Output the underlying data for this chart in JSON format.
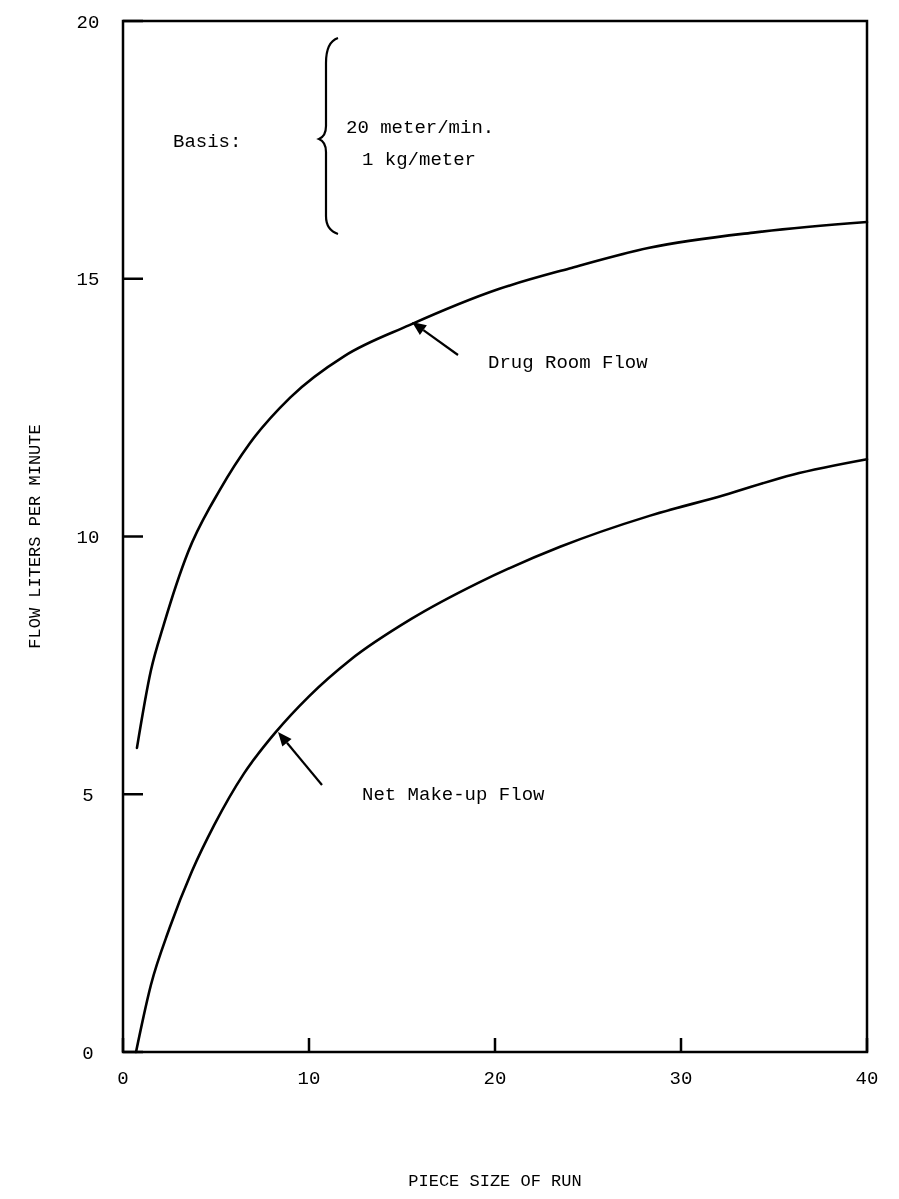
{
  "chart_data": {
    "type": "line",
    "xlabel": "PIECE SIZE OF RUN",
    "ylabel": "FLOW LITERS PER MINUTE",
    "xlim": [
      0,
      40
    ],
    "ylim": [
      0,
      20
    ],
    "xticks": [
      0,
      10,
      20,
      30,
      40
    ],
    "yticks": [
      0,
      5,
      10,
      15,
      20
    ],
    "grid": false,
    "marker": "none",
    "line_style": "solid",
    "series": [
      {
        "color": "#000000",
        "x": [
          0.75,
          1.5,
          2.2,
          3.5,
          5.2,
          6.8,
          9,
          11.9,
          15.4,
          20.2,
          24,
          28.3,
          34,
          40
        ],
        "values": [
          5.9,
          7.4,
          8.3,
          9.7,
          10.9,
          11.8,
          12.7,
          13.5,
          14.1,
          14.8,
          15.2,
          15.6,
          15.9,
          16.1
        ]
      },
      {
        "color": "#000000",
        "x": [
          0.7,
          1.5,
          2.5,
          3.7,
          4.9,
          6.5,
          8.2,
          10,
          12.2,
          15.5,
          19.1,
          23.5,
          28.3,
          32.3,
          36,
          40
        ],
        "values": [
          0,
          1.3,
          2.4,
          3.5,
          4.4,
          5.4,
          6.2,
          6.9,
          7.6,
          8.4,
          9.1,
          9.8,
          10.4,
          10.8,
          11.2,
          11.5
        ]
      }
    ],
    "annotations": [
      "Drug Room Flow",
      "Net Make-up Flow",
      "Basis:",
      "20 meter/min.",
      "1 kg/meter"
    ]
  }
}
